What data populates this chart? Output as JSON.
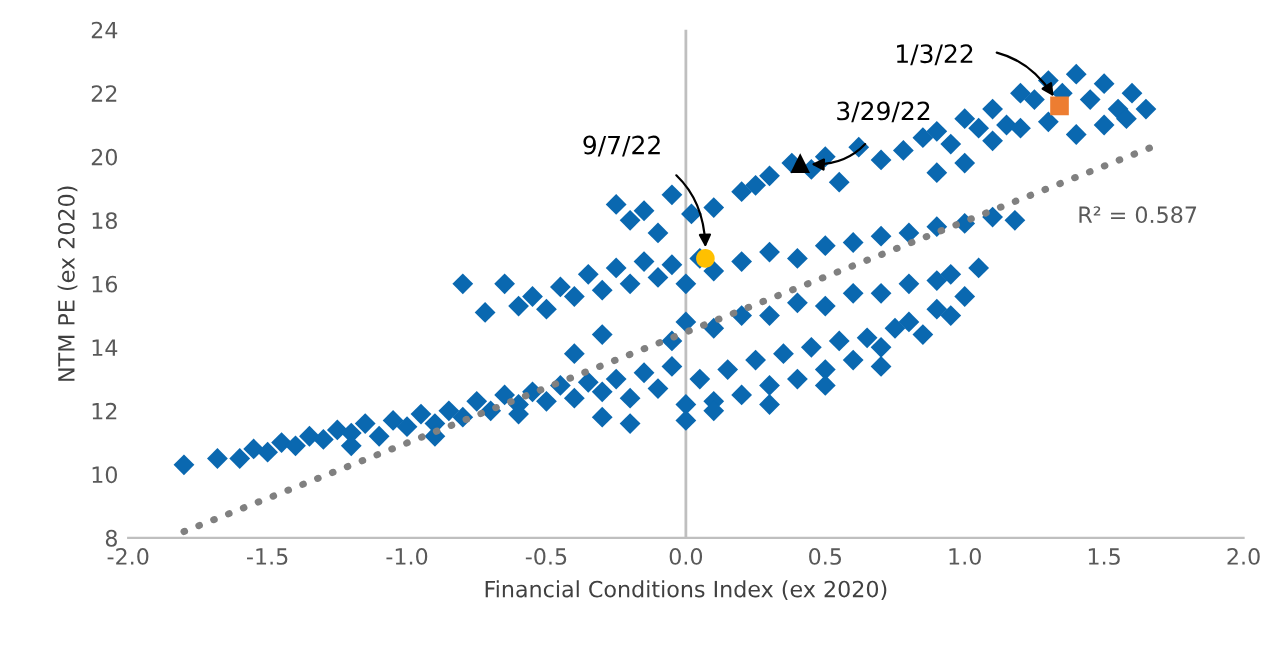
{
  "chart_data": {
    "type": "scatter",
    "xlabel": "Financial Conditions Index (ex 2020)",
    "ylabel": "NTM PE (ex 2020)",
    "xlim": [
      -2,
      2
    ],
    "xticks": [
      {
        "value": -2,
        "label": "-2.0"
      },
      {
        "value": -1.5,
        "label": "-1.5"
      },
      {
        "value": -1,
        "label": "-1.0"
      },
      {
        "value": -0.5,
        "label": "-0.5"
      },
      {
        "value": 0,
        "label": "0.0"
      },
      {
        "value": 0.5,
        "label": "0.5"
      },
      {
        "value": 1,
        "label": "1.0"
      },
      {
        "value": 1.5,
        "label": "1.5"
      },
      {
        "value": 2,
        "label": "2.0"
      }
    ],
    "ylim": [
      8,
      24
    ],
    "yticks": [
      8,
      10,
      12,
      14,
      16,
      18,
      20,
      22,
      24
    ],
    "ref_lines": [
      {
        "axis": "x",
        "value": 0,
        "color": "#bfbfbf"
      }
    ],
    "series": [
      {
        "marker": "diamond",
        "color": "#0a68b0",
        "x": [
          -1.8,
          -1.68,
          -1.6,
          -1.55,
          -1.5,
          -1.45,
          -1.4,
          -1.35,
          -1.3,
          -1.25,
          -1.2,
          -1.15,
          -1.1,
          -1.05,
          -1.0,
          -0.95,
          -0.9,
          -0.85,
          -0.8,
          -0.75,
          -0.7,
          -0.65,
          -0.6,
          -0.55,
          -0.5,
          -0.45,
          -0.4,
          -0.35,
          -0.3,
          -0.25,
          -0.2,
          -0.15,
          -0.1,
          -0.05,
          0.0,
          0.05,
          0.1,
          0.15,
          0.2,
          0.25,
          0.3,
          0.35,
          0.4,
          0.45,
          0.5,
          0.55,
          0.6,
          0.65,
          0.7,
          0.75,
          0.8,
          0.85,
          0.9,
          0.95,
          1.0,
          -1.2,
          -0.9,
          -0.6,
          -0.3,
          -0.2,
          0.0,
          0.1,
          0.3,
          0.5,
          0.7,
          -0.8,
          -0.72,
          -0.65,
          -0.6,
          -0.55,
          -0.5,
          -0.45,
          -0.4,
          -0.35,
          -0.3,
          -0.25,
          -0.2,
          -0.15,
          -0.1,
          -0.05,
          0.0,
          0.05,
          0.1,
          0.2,
          0.3,
          0.4,
          0.5,
          0.6,
          0.7,
          0.8,
          0.9,
          1.0,
          1.1,
          1.18,
          -0.4,
          -0.3,
          0.0,
          0.2,
          0.4,
          0.6,
          0.8,
          0.95,
          -0.05,
          0.1,
          0.3,
          0.5,
          0.7,
          0.9,
          1.05,
          -0.25,
          -0.2,
          -0.15,
          -0.1,
          -0.05,
          0.02,
          0.1,
          0.2,
          0.25,
          0.3,
          0.38,
          0.45,
          0.5,
          0.55,
          0.62,
          0.7,
          0.78,
          0.85,
          0.9,
          0.95,
          1.0,
          1.05,
          1.1,
          1.15,
          1.2,
          1.25,
          1.3,
          1.35,
          1.4,
          1.45,
          1.5,
          1.55,
          1.6,
          1.65,
          1.2,
          1.3,
          1.4,
          1.5,
          1.58,
          1.1,
          1.0,
          0.9
        ],
        "values": [
          10.3,
          10.5,
          10.5,
          10.8,
          10.7,
          11.0,
          10.9,
          11.2,
          11.1,
          11.4,
          11.3,
          11.6,
          11.2,
          11.7,
          11.5,
          11.9,
          11.6,
          12.0,
          11.8,
          12.3,
          12.0,
          12.5,
          12.2,
          12.6,
          12.3,
          12.8,
          12.4,
          12.9,
          12.6,
          13.0,
          12.4,
          13.2,
          12.7,
          13.4,
          12.2,
          13.0,
          12.3,
          13.3,
          12.5,
          13.6,
          12.8,
          13.8,
          13.0,
          14.0,
          13.3,
          14.2,
          13.6,
          14.3,
          14.0,
          14.6,
          14.8,
          14.4,
          15.2,
          15.0,
          15.6,
          10.9,
          11.2,
          11.9,
          11.8,
          11.6,
          11.7,
          12.0,
          12.2,
          12.8,
          13.4,
          16.0,
          15.1,
          16.0,
          15.3,
          15.6,
          15.2,
          15.9,
          15.6,
          16.3,
          15.8,
          16.5,
          16.0,
          16.7,
          16.2,
          16.6,
          16.0,
          16.8,
          16.4,
          16.7,
          17.0,
          16.8,
          17.2,
          17.3,
          17.5,
          17.6,
          17.8,
          17.9,
          18.1,
          18.0,
          13.8,
          14.4,
          14.8,
          15.0,
          15.4,
          15.7,
          16.0,
          16.3,
          14.2,
          14.6,
          15.0,
          15.3,
          15.7,
          16.1,
          16.5,
          18.5,
          18.0,
          18.3,
          17.6,
          18.8,
          18.2,
          18.4,
          18.9,
          19.1,
          19.4,
          19.8,
          19.6,
          20.0,
          19.2,
          20.3,
          19.9,
          20.2,
          20.6,
          20.8,
          20.4,
          21.2,
          20.9,
          21.5,
          21.0,
          22.0,
          21.8,
          22.4,
          22.0,
          22.6,
          21.8,
          22.3,
          21.5,
          22.0,
          21.5,
          20.9,
          21.1,
          20.7,
          21.0,
          21.2,
          20.5,
          19.8,
          19.5
        ]
      },
      {
        "type": "line",
        "line_style": "dotted",
        "marker": "none",
        "color": "#808080",
        "x": [
          -1.8,
          1.67
        ],
        "values": [
          8.2,
          20.3
        ]
      },
      {
        "marker": "circle",
        "color": "#ffc000",
        "x": [
          0.07
        ],
        "values": [
          16.8
        ]
      },
      {
        "marker": "triangle",
        "color": "#000000",
        "x": [
          0.41
        ],
        "values": [
          19.8
        ]
      },
      {
        "marker": "square",
        "color": "#ed7d31",
        "x": [
          1.34
        ],
        "values": [
          21.6
        ]
      }
    ],
    "annotations": [
      {
        "text": "9/7/22",
        "x": 0.07,
        "y": 16.8
      },
      {
        "text": "3/29/22",
        "x": 0.41,
        "y": 19.8
      },
      {
        "text": "1/3/22",
        "x": 1.34,
        "y": 21.6
      },
      {
        "text": "R² = 0.587",
        "x": 1.67,
        "y": 20.3
      }
    ]
  }
}
